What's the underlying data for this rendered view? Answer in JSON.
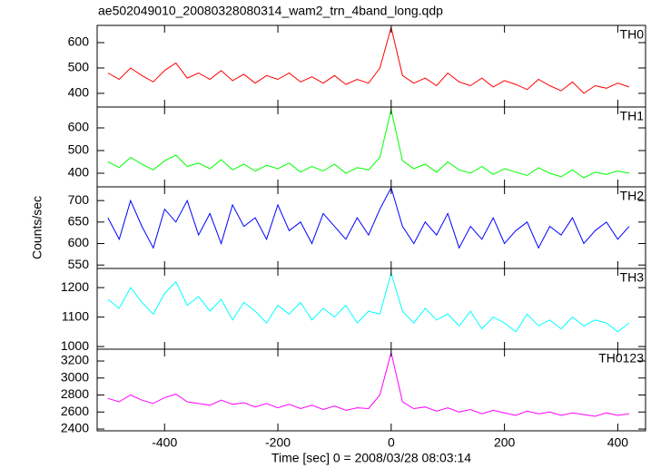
{
  "chart_data": {
    "type": "line",
    "title": "ae502049010_20080328080314_wam2_trn_4band_long.qdp",
    "xlabel": "Time [sec] 0 = 2008/03/28 08:03:14",
    "ylabel": "Counts/sec",
    "xlim": [
      -519,
      449
    ],
    "xticks": [
      -400,
      -200,
      0,
      200,
      400
    ],
    "x": [
      -500,
      -480,
      -460,
      -440,
      -420,
      -400,
      -380,
      -360,
      -340,
      -320,
      -300,
      -280,
      -260,
      -240,
      -220,
      -200,
      -180,
      -160,
      -140,
      -120,
      -100,
      -80,
      -60,
      -40,
      -20,
      0,
      20,
      40,
      60,
      80,
      100,
      120,
      140,
      160,
      180,
      200,
      220,
      240,
      260,
      280,
      300,
      320,
      340,
      360,
      380,
      400,
      420
    ],
    "series": [
      {
        "name": "TH0",
        "color": "#ff0000",
        "ylim": [
          346,
          668
        ],
        "yticks": [
          400,
          500,
          600
        ],
        "values": [
          480,
          455,
          500,
          470,
          445,
          490,
          520,
          460,
          480,
          455,
          490,
          450,
          475,
          440,
          470,
          455,
          480,
          445,
          465,
          440,
          470,
          435,
          455,
          440,
          500,
          660,
          470,
          440,
          460,
          430,
          480,
          445,
          430,
          460,
          425,
          450,
          435,
          415,
          455,
          430,
          410,
          445,
          400,
          430,
          420,
          440,
          425
        ]
      },
      {
        "name": "TH1",
        "color": "#00ff00",
        "ylim": [
          340,
          692
        ],
        "yticks": [
          400,
          500,
          600
        ],
        "values": [
          450,
          425,
          470,
          440,
          415,
          455,
          480,
          430,
          445,
          420,
          460,
          415,
          440,
          410,
          435,
          420,
          445,
          405,
          430,
          410,
          440,
          400,
          425,
          415,
          470,
          680,
          455,
          420,
          440,
          405,
          450,
          415,
          400,
          430,
          395,
          420,
          405,
          390,
          425,
          400,
          385,
          415,
          380,
          405,
          395,
          410,
          400
        ]
      },
      {
        "name": "TH2",
        "color": "#0000ff",
        "ylim": [
          542,
          732
        ],
        "yticks": [
          550,
          600,
          650,
          700
        ],
        "values": [
          660,
          610,
          700,
          640,
          590,
          680,
          650,
          700,
          620,
          670,
          600,
          690,
          640,
          660,
          610,
          690,
          630,
          650,
          600,
          670,
          640,
          610,
          660,
          620,
          680,
          730,
          640,
          600,
          650,
          620,
          670,
          590,
          640,
          610,
          660,
          600,
          630,
          650,
          590,
          640,
          620,
          660,
          600,
          630,
          650,
          610,
          640
        ]
      },
      {
        "name": "TH3",
        "color": "#00ffff",
        "ylim": [
          991,
          1265
        ],
        "yticks": [
          1000,
          1100,
          1200
        ],
        "values": [
          1160,
          1130,
          1200,
          1150,
          1110,
          1180,
          1220,
          1140,
          1170,
          1120,
          1160,
          1090,
          1150,
          1120,
          1080,
          1140,
          1110,
          1150,
          1090,
          1130,
          1100,
          1140,
          1080,
          1120,
          1110,
          1250,
          1120,
          1080,
          1130,
          1090,
          1110,
          1070,
          1120,
          1060,
          1100,
          1080,
          1050,
          1110,
          1070,
          1090,
          1060,
          1100,
          1070,
          1090,
          1080,
          1050,
          1080
        ]
      },
      {
        "name": "TH0123",
        "color": "#ff00ff",
        "ylim": [
          2379,
          3339
        ],
        "yticks": [
          2400,
          2600,
          2800,
          3000,
          3200
        ],
        "values": [
          2760,
          2720,
          2800,
          2740,
          2700,
          2770,
          2810,
          2720,
          2700,
          2680,
          2740,
          2690,
          2710,
          2660,
          2700,
          2650,
          2690,
          2640,
          2680,
          2630,
          2670,
          2620,
          2650,
          2640,
          2800,
          3300,
          2720,
          2640,
          2660,
          2610,
          2650,
          2600,
          2630,
          2580,
          2620,
          2590,
          2560,
          2610,
          2580,
          2600,
          2560,
          2590,
          2570,
          2550,
          2590,
          2560,
          2580
        ]
      }
    ]
  }
}
